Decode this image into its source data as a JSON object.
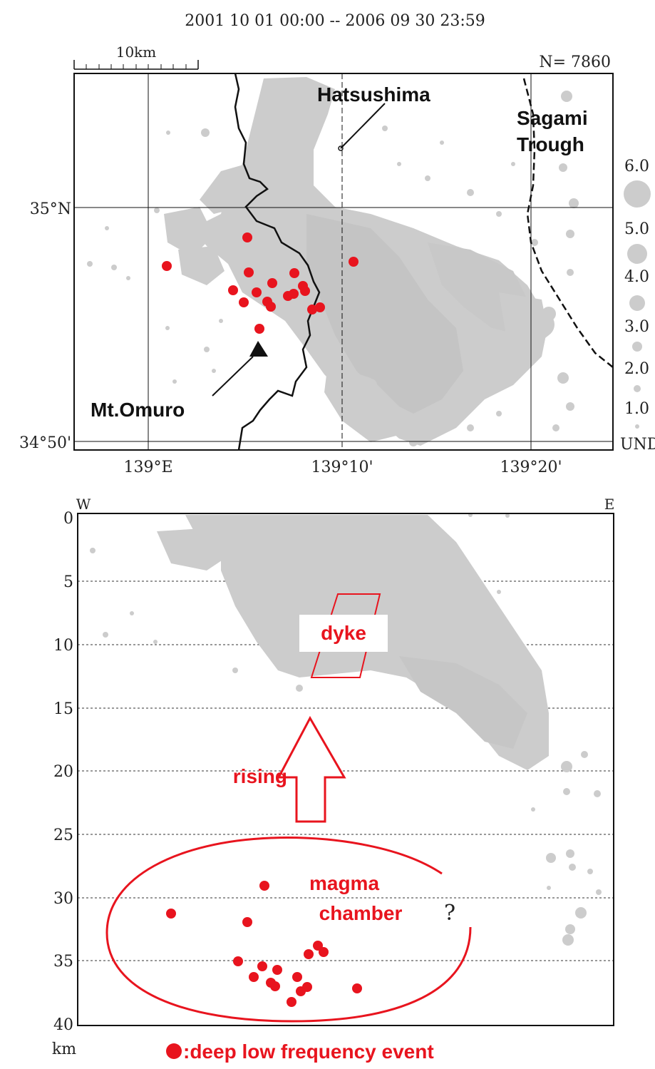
{
  "header": {
    "period": "2001 10 01 00:00 -- 2006 09 30 23:59",
    "count_label": "N= 7860",
    "scale_bar_label": "10km"
  },
  "map": {
    "lat_labels": [
      "35°N",
      "34°50'"
    ],
    "lon_labels": [
      "139°E",
      "139°10'",
      "139°20'"
    ],
    "place_labels": {
      "hatsushima": "Hatsushima",
      "sagami_line1": "Sagami",
      "sagami_line2": "Trough",
      "omuro": "Mt.Omuro"
    },
    "magnitude_legend": [
      "6.0",
      "5.0",
      "4.0",
      "3.0",
      "2.0",
      "1.0",
      "UND"
    ]
  },
  "section": {
    "west_label": "W",
    "east_label": "E",
    "depth_unit": "km",
    "depth_ticks": [
      "0",
      "5",
      "10",
      "15",
      "20",
      "25",
      "30",
      "35",
      "40"
    ],
    "dyke_label": "dyke",
    "rising_label": "rising",
    "chamber_line1": "magma",
    "chamber_line2": "chamber",
    "question_mark": "?"
  },
  "legend": {
    "deep_event_label": ":deep low frequency event"
  },
  "colors": {
    "seismicity": "#cccccc",
    "deep_event": "#e8141e",
    "frame": "#111111"
  }
}
